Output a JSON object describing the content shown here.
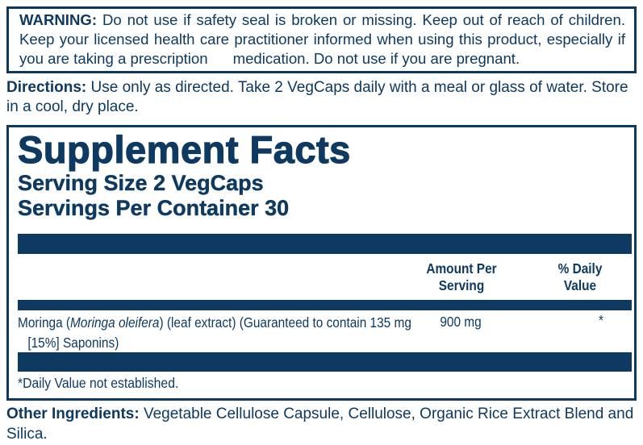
{
  "colors": {
    "navy": "#0e3a62",
    "background": "#ffffff"
  },
  "warning": {
    "label": "WARNING:",
    "text": "Do not use if safety seal is broken or missing. Keep out of reach of children. Keep your licensed health care practitioner informed when using this product, especially if you are taking a prescription      medication. Do not use if you are pregnant."
  },
  "directions": {
    "label": "Directions:",
    "text": "Use only as directed. Take 2 VegCaps daily with a meal or glass of water. Store in a cool, dry place."
  },
  "supplement_facts": {
    "title": "Supplement Facts",
    "serving_size": "Serving Size 2 VegCaps",
    "servings_per_container": "Servings Per Container 30",
    "columns": {
      "amount": "Amount Per Serving",
      "daily_value": "% Daily Value"
    },
    "rows": [
      {
        "name_prefix": "Moringa (",
        "name_italic": "Moringa oleifera",
        "name_suffix": ") (leaf extract) (Guaranteed to contain 135 mg [15%] Saponins)",
        "amount": "900 mg",
        "daily_value": "*"
      }
    ],
    "footnote": "*Daily Value not established."
  },
  "other_ingredients": {
    "label": "Other Ingredients:",
    "text": "Vegetable Cellulose Capsule, Cellulose, Organic Rice Extract Blend and Silica."
  }
}
